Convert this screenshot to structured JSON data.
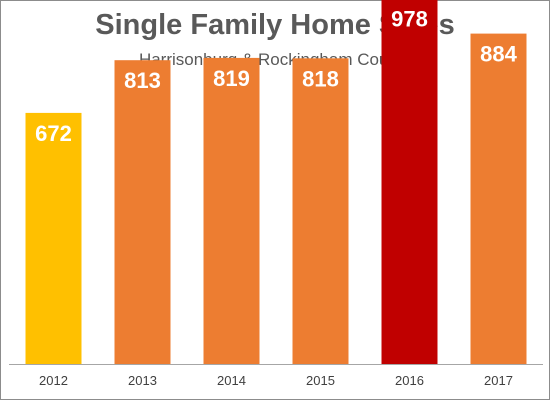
{
  "chart_data": {
    "type": "bar",
    "title": "Single Family Home Sales",
    "subtitle": "Harrisonburg & Rockingham County",
    "categories": [
      "2012",
      "2013",
      "2014",
      "2015",
      "2016",
      "2017"
    ],
    "values": [
      672,
      813,
      819,
      818,
      978,
      884
    ],
    "colors": [
      "#ffc000",
      "#ed7d31",
      "#ed7d31",
      "#ed7d31",
      "#c00000",
      "#ed7d31"
    ],
    "label_color": "#ffffff",
    "axis_color": "#a6a6a6",
    "ylim": [
      0,
      1000
    ],
    "grid": false,
    "legend": "none",
    "data_labels": "inside-top"
  }
}
